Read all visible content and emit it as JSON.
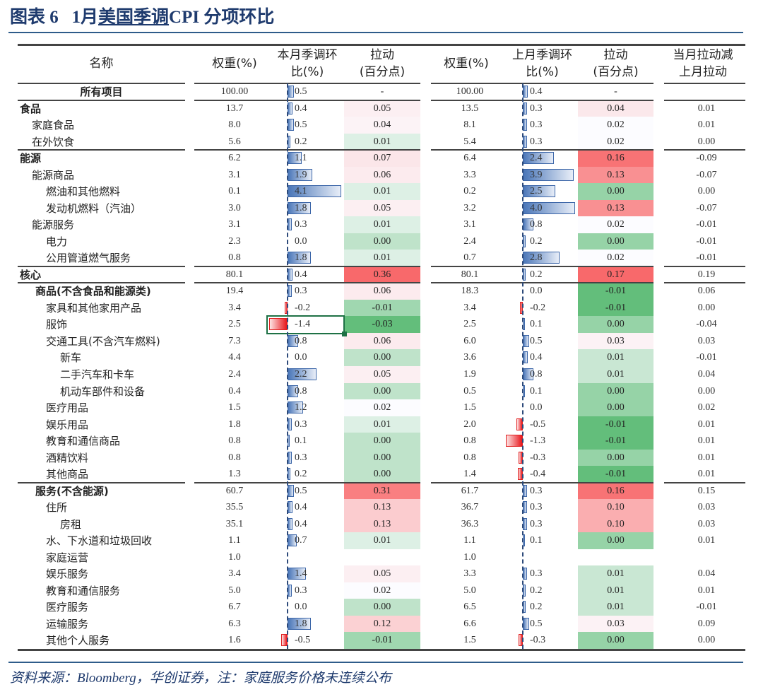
{
  "title": {
    "prefix": "图表 6   1月",
    "underlined": "美国季调",
    "suffix": "CPI 分项环比"
  },
  "headers": {
    "name": "名称",
    "weight_cur": "权重(%)",
    "mom_cur": [
      "本月季调环",
      "比(%)"
    ],
    "pull_cur": [
      "拉动",
      "(百分点)"
    ],
    "weight_prev": "权重(%)",
    "mom_prev": [
      "上月季调环",
      "比(%)"
    ],
    "pull_prev": [
      "拉动",
      "(百分点)"
    ],
    "diff": [
      "当月拉动减",
      "上月拉动"
    ]
  },
  "colors": {
    "bar_positive": "#4a76b8",
    "bar_negative": "#e8161c",
    "heat_high": "#f8696b",
    "heat_mid": "#fcfcff",
    "heat_low": "#63be7b",
    "title": "#1f3b6e"
  },
  "selected_cell": {
    "row": "服饰",
    "column": "本月季调环比(%)"
  },
  "sections": [
    {
      "rows": [
        {
          "name": "所有项目",
          "level": -1,
          "bold": true,
          "w1": "100.00",
          "m1": "0.5",
          "p1": "-",
          "w2": "100.00",
          "m2": "0.4",
          "p2": "-",
          "d": ""
        }
      ]
    },
    {
      "rows": [
        {
          "name": "食品",
          "level": 0,
          "bold": true,
          "w1": "13.7",
          "m1": "0.4",
          "p1": "0.05",
          "w2": "13.5",
          "m2": "0.3",
          "p2": "0.04",
          "d": "0.01"
        },
        {
          "name": "家庭食品",
          "level": 1,
          "bold": false,
          "w1": "8.0",
          "m1": "0.5",
          "p1": "0.04",
          "w2": "8.1",
          "m2": "0.3",
          "p2": "0.02",
          "d": "0.01"
        },
        {
          "name": "在外饮食",
          "level": 1,
          "bold": false,
          "w1": "5.6",
          "m1": "0.2",
          "p1": "0.01",
          "w2": "5.4",
          "m2": "0.3",
          "p2": "0.02",
          "d": "0.00"
        }
      ]
    },
    {
      "rows": [
        {
          "name": "能源",
          "level": 0,
          "bold": true,
          "w1": "6.2",
          "m1": "1.1",
          "p1": "0.07",
          "w2": "6.4",
          "m2": "2.4",
          "p2": "0.16",
          "d": "-0.09"
        },
        {
          "name": "能源商品",
          "level": 1,
          "bold": false,
          "w1": "3.1",
          "m1": "1.9",
          "p1": "0.06",
          "w2": "3.3",
          "m2": "3.9",
          "p2": "0.13",
          "d": "-0.07"
        },
        {
          "name": "燃油和其他燃料",
          "level": 2,
          "bold": false,
          "w1": "0.1",
          "m1": "4.1",
          "p1": "0.01",
          "w2": "0.2",
          "m2": "2.5",
          "p2": "0.00",
          "d": "0.00"
        },
        {
          "name": "发动机燃料（汽油）",
          "level": 2,
          "bold": false,
          "w1": "3.0",
          "m1": "1.8",
          "p1": "0.05",
          "w2": "3.2",
          "m2": "4.0",
          "p2": "0.13",
          "d": "-0.07"
        },
        {
          "name": "能源服务",
          "level": 1,
          "bold": false,
          "w1": "3.1",
          "m1": "0.3",
          "p1": "0.01",
          "w2": "3.1",
          "m2": "0.8",
          "p2": "0.02",
          "d": "-0.01"
        },
        {
          "name": "电力",
          "level": 2,
          "bold": false,
          "w1": "2.3",
          "m1": "0.0",
          "p1": "0.00",
          "w2": "2.4",
          "m2": "0.2",
          "p2": "0.00",
          "d": "-0.01"
        },
        {
          "name": "公用管道燃气服务",
          "level": 2,
          "bold": false,
          "w1": "0.8",
          "m1": "1.8",
          "p1": "0.01",
          "w2": "0.7",
          "m2": "2.8",
          "p2": "0.02",
          "d": "-0.01"
        }
      ]
    },
    {
      "rows": [
        {
          "name": "核心",
          "level": 0,
          "bold": true,
          "w1": "80.1",
          "m1": "0.4",
          "p1": "0.36",
          "w2": "80.1",
          "m2": "0.2",
          "p2": "0.17",
          "d": "0.19"
        }
      ]
    },
    {
      "rows": [
        {
          "name": "商品(不含食品和能源类)",
          "level": 1.3,
          "bold": true,
          "w1": "19.4",
          "m1": "0.3",
          "p1": "0.06",
          "w2": "18.3",
          "m2": "0.0",
          "p2": "-0.01",
          "d": "0.06"
        },
        {
          "name": "家具和其他家用产品",
          "level": 2,
          "bold": false,
          "w1": "3.4",
          "m1": "-0.2",
          "p1": "-0.01",
          "w2": "3.4",
          "m2": "-0.2",
          "p2": "-0.01",
          "d": "0.00"
        },
        {
          "name": "服饰",
          "level": 2,
          "bold": false,
          "w1": "2.5",
          "m1": "-1.4",
          "p1": "-0.03",
          "w2": "2.5",
          "m2": "0.1",
          "p2": "0.00",
          "d": "-0.04"
        },
        {
          "name": "交通工具(不含汽车燃料)",
          "level": 2,
          "bold": false,
          "w1": "7.3",
          "m1": "0.8",
          "p1": "0.06",
          "w2": "6.0",
          "m2": "0.5",
          "p2": "0.03",
          "d": "0.03"
        },
        {
          "name": "新车",
          "level": 3,
          "bold": false,
          "w1": "4.4",
          "m1": "0.0",
          "p1": "0.00",
          "w2": "3.6",
          "m2": "0.4",
          "p2": "0.01",
          "d": "-0.01"
        },
        {
          "name": "二手汽车和卡车",
          "level": 3,
          "bold": false,
          "w1": "2.4",
          "m1": "2.2",
          "p1": "0.05",
          "w2": "1.9",
          "m2": "0.8",
          "p2": "0.01",
          "d": "0.04"
        },
        {
          "name": "机动车部件和设备",
          "level": 3,
          "bold": false,
          "w1": "0.4",
          "m1": "0.8",
          "p1": "0.00",
          "w2": "0.5",
          "m2": "0.1",
          "p2": "0.00",
          "d": "0.00"
        },
        {
          "name": "医疗用品",
          "level": 2,
          "bold": false,
          "w1": "1.5",
          "m1": "1.2",
          "p1": "0.02",
          "w2": "1.5",
          "m2": "0.0",
          "p2": "0.00",
          "d": "0.02"
        },
        {
          "name": "娱乐用品",
          "level": 2,
          "bold": false,
          "w1": "1.8",
          "m1": "0.3",
          "p1": "0.01",
          "w2": "2.0",
          "m2": "-0.5",
          "p2": "-0.01",
          "d": "0.01"
        },
        {
          "name": "教育和通信商品",
          "level": 2,
          "bold": false,
          "w1": "0.8",
          "m1": "0.1",
          "p1": "0.00",
          "w2": "0.8",
          "m2": "-1.3",
          "p2": "-0.01",
          "d": "0.01"
        },
        {
          "name": "酒精饮料",
          "level": 2,
          "bold": false,
          "w1": "0.8",
          "m1": "0.3",
          "p1": "0.00",
          "w2": "0.8",
          "m2": "-0.3",
          "p2": "0.00",
          "d": "0.01"
        },
        {
          "name": "其他商品",
          "level": 2,
          "bold": false,
          "w1": "1.3",
          "m1": "0.2",
          "p1": "0.00",
          "w2": "1.4",
          "m2": "-0.4",
          "p2": "-0.01",
          "d": "0.01"
        }
      ]
    },
    {
      "rows": [
        {
          "name": "服务(不含能源)",
          "level": 1.3,
          "bold": true,
          "w1": "60.7",
          "m1": "0.5",
          "p1": "0.31",
          "w2": "61.7",
          "m2": "0.3",
          "p2": "0.16",
          "d": "0.15"
        },
        {
          "name": "住所",
          "level": 2,
          "bold": false,
          "w1": "35.5",
          "m1": "0.4",
          "p1": "0.13",
          "w2": "36.7",
          "m2": "0.3",
          "p2": "0.10",
          "d": "0.03"
        },
        {
          "name": "房租",
          "level": 3,
          "bold": false,
          "w1": "35.1",
          "m1": "0.4",
          "p1": "0.13",
          "w2": "36.3",
          "m2": "0.3",
          "p2": "0.10",
          "d": "0.03"
        },
        {
          "name": "水、下水道和垃圾回收",
          "level": 2,
          "bold": false,
          "w1": "1.1",
          "m1": "0.7",
          "p1": "0.01",
          "w2": "1.1",
          "m2": "0.1",
          "p2": "0.00",
          "d": "0.01"
        },
        {
          "name": "家庭运营",
          "level": 2,
          "bold": false,
          "w1": "1.0",
          "m1": "",
          "p1": "",
          "w2": "1.0",
          "m2": "",
          "p2": "",
          "d": ""
        },
        {
          "name": "娱乐服务",
          "level": 2,
          "bold": false,
          "w1": "3.4",
          "m1": "1.4",
          "p1": "0.05",
          "w2": "3.3",
          "m2": "0.3",
          "p2": "0.01",
          "d": "0.04"
        },
        {
          "name": "教育和通信服务",
          "level": 2,
          "bold": false,
          "w1": "5.0",
          "m1": "0.3",
          "p1": "0.02",
          "w2": "5.0",
          "m2": "0.2",
          "p2": "0.01",
          "d": "0.01"
        },
        {
          "name": "医疗服务",
          "level": 2,
          "bold": false,
          "w1": "6.7",
          "m1": "0.0",
          "p1": "0.00",
          "w2": "6.5",
          "m2": "0.2",
          "p2": "0.01",
          "d": "-0.01"
        },
        {
          "name": "运输服务",
          "level": 2,
          "bold": false,
          "w1": "6.3",
          "m1": "1.8",
          "p1": "0.12",
          "w2": "6.6",
          "m2": "0.5",
          "p2": "0.03",
          "d": "0.09"
        },
        {
          "name": "其他个人服务",
          "level": 2,
          "bold": false,
          "w1": "1.6",
          "m1": "-0.5",
          "p1": "-0.01",
          "w2": "1.5",
          "m2": "-0.3",
          "p2": "0.00",
          "d": "0.00"
        }
      ]
    }
  ],
  "footer": "资料来源：Bloomberg，华创证券，注：家庭服务价格未连续公布"
}
